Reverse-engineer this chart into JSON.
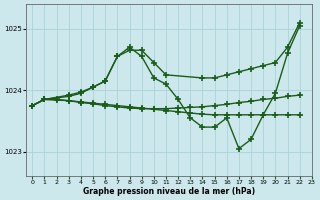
{
  "xlabel": "Graphe pression niveau de la mer (hPa)",
  "xlim": [
    -0.5,
    23
  ],
  "ylim": [
    1022.6,
    1025.4
  ],
  "yticks": [
    1023,
    1024,
    1025
  ],
  "xticks": [
    0,
    1,
    2,
    3,
    4,
    5,
    6,
    7,
    8,
    9,
    10,
    11,
    12,
    13,
    14,
    15,
    16,
    17,
    18,
    19,
    20,
    21,
    22,
    23
  ],
  "bg_color": "#cce8ec",
  "grid_color": "#aad4d8",
  "line_color": "#1a5c1a",
  "line_width": 1.0,
  "marker": "+",
  "marker_size": 4,
  "marker_ew": 1.2,
  "lines": [
    {
      "x": [
        0,
        1,
        3,
        4,
        5,
        6,
        7,
        8,
        9,
        10,
        11,
        14,
        15,
        16,
        17,
        18,
        19,
        20,
        21,
        22
      ],
      "y": [
        1023.75,
        1023.85,
        1023.9,
        1023.95,
        1024.05,
        1024.15,
        1024.55,
        1024.65,
        1024.65,
        1024.45,
        1024.25,
        1024.2,
        1024.2,
        1024.25,
        1024.3,
        1024.35,
        1024.4,
        1024.45,
        1024.7,
        1025.1
      ]
    },
    {
      "x": [
        0,
        1,
        3,
        4,
        5,
        6,
        7,
        8,
        9,
        10,
        11,
        12,
        13,
        14,
        15,
        16,
        17,
        18,
        19,
        20,
        21,
        22
      ],
      "y": [
        1023.75,
        1023.85,
        1023.92,
        1023.97,
        1024.05,
        1024.15,
        1024.55,
        1024.7,
        1024.55,
        1024.2,
        1024.1,
        1023.85,
        1023.55,
        1023.4,
        1023.4,
        1023.55,
        1023.05,
        1023.2,
        1023.6,
        1023.95,
        1024.6,
        1025.05
      ]
    },
    {
      "x": [
        0,
        1,
        2,
        3,
        4,
        5,
        6,
        7,
        8,
        9,
        10,
        11,
        12,
        13,
        14,
        15,
        16,
        17,
        18,
        19,
        20,
        21,
        22
      ],
      "y": [
        1023.75,
        1023.85,
        1023.85,
        1023.83,
        1023.8,
        1023.78,
        1023.75,
        1023.73,
        1023.71,
        1023.7,
        1023.7,
        1023.7,
        1023.71,
        1023.72,
        1023.73,
        1023.75,
        1023.77,
        1023.8,
        1023.82,
        1023.85,
        1023.87,
        1023.9,
        1023.92
      ]
    },
    {
      "x": [
        0,
        1,
        2,
        3,
        4,
        5,
        6,
        7,
        8,
        9,
        10,
        11,
        12,
        13,
        14,
        15,
        16,
        17,
        18,
        19,
        20,
        21,
        22
      ],
      "y": [
        1023.75,
        1023.85,
        1023.84,
        1023.83,
        1023.81,
        1023.79,
        1023.77,
        1023.75,
        1023.73,
        1023.71,
        1023.69,
        1023.67,
        1023.65,
        1023.63,
        1023.61,
        1023.6,
        1023.6,
        1023.6,
        1023.6,
        1023.6,
        1023.6,
        1023.6,
        1023.6
      ]
    }
  ]
}
